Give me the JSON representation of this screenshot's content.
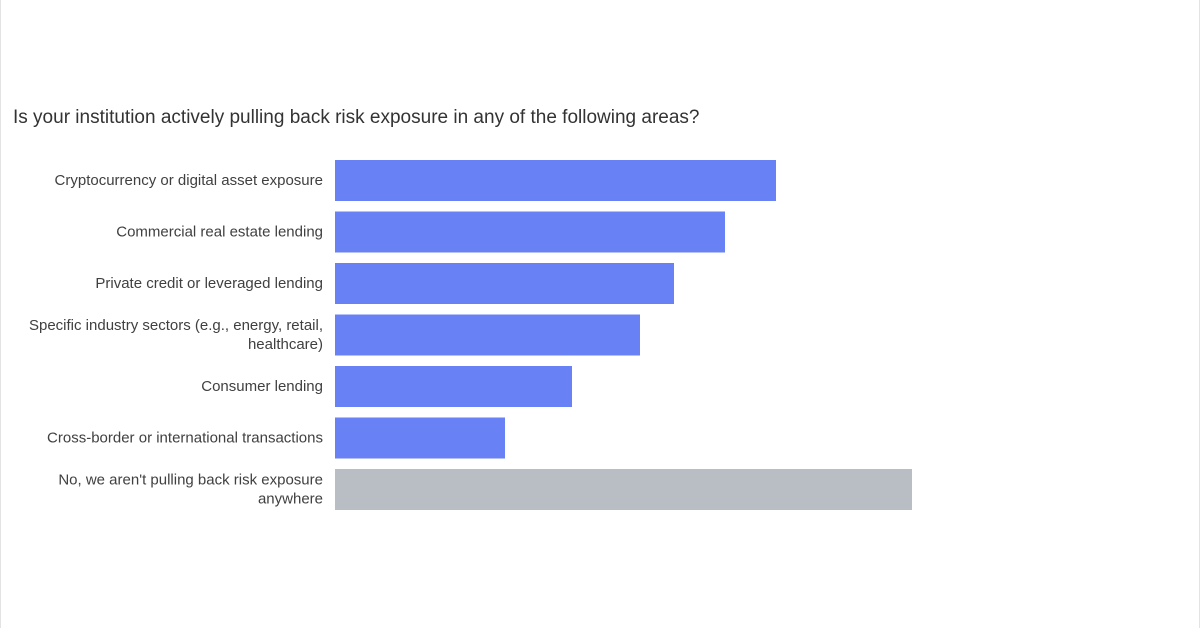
{
  "chart_data": {
    "type": "bar",
    "orientation": "horizontal",
    "title": "Is your institution actively pulling back risk exposure in any of the following areas?",
    "categories": [
      [
        "Cryptocurrency or digital asset exposure"
      ],
      [
        "Commercial real estate lending"
      ],
      [
        "Private credit or leveraged lending"
      ],
      [
        "Specific industry sectors (e.g., energy, retail,",
        "healthcare)"
      ],
      [
        "Consumer lending"
      ],
      [
        "Cross-border or international transactions"
      ],
      [
        "No, we aren't pulling back risk exposure",
        "anywhere"
      ]
    ],
    "values": [
      441,
      390,
      339,
      305,
      237,
      170,
      577
    ],
    "xlim": [
      0,
      577
    ],
    "colors": [
      "#6881f5",
      "#6881f5",
      "#6881f5",
      "#6881f5",
      "#6881f5",
      "#6881f5",
      "#b8bec4"
    ],
    "grid": false,
    "legend": "none"
  }
}
